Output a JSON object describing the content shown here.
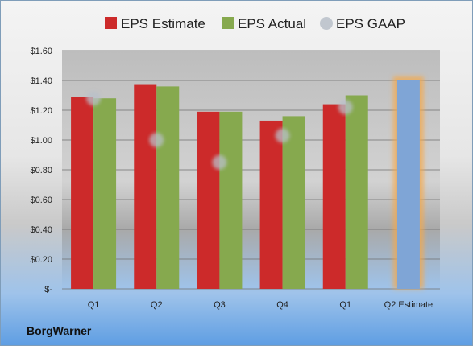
{
  "company": "BorgWarner",
  "colors": {
    "estimate": "#cc2a2a",
    "actual": "#86a94e",
    "gaap": "#b9c0c9",
    "q2_estimate_fill": "#7fa5d6",
    "q2_estimate_glow": "#f6a94a"
  },
  "chart_data": {
    "type": "bar",
    "categories": [
      "Q1",
      "Q2",
      "Q3",
      "Q4",
      "Q1",
      "Q2 Estimate"
    ],
    "series": [
      {
        "name": "EPS Estimate",
        "values": [
          1.29,
          1.37,
          1.19,
          1.13,
          1.24,
          null
        ]
      },
      {
        "name": "EPS Actual",
        "values": [
          1.28,
          1.36,
          1.19,
          1.16,
          1.3,
          null
        ]
      },
      {
        "name": "EPS GAAP",
        "values": [
          1.28,
          1.0,
          0.85,
          1.03,
          1.22,
          null
        ]
      }
    ],
    "q2_estimate_value": 1.4,
    "y_ticks": [
      "$-",
      "$0.20",
      "$0.40",
      "$0.60",
      "$0.80",
      "$1.00",
      "$1.20",
      "$1.40",
      "$1.60"
    ],
    "y_tick_values": [
      0,
      0.2,
      0.4,
      0.6,
      0.8,
      1.0,
      1.2,
      1.4,
      1.6
    ],
    "ylim": [
      0,
      1.6
    ],
    "grid": true,
    "legend_position": "top"
  }
}
